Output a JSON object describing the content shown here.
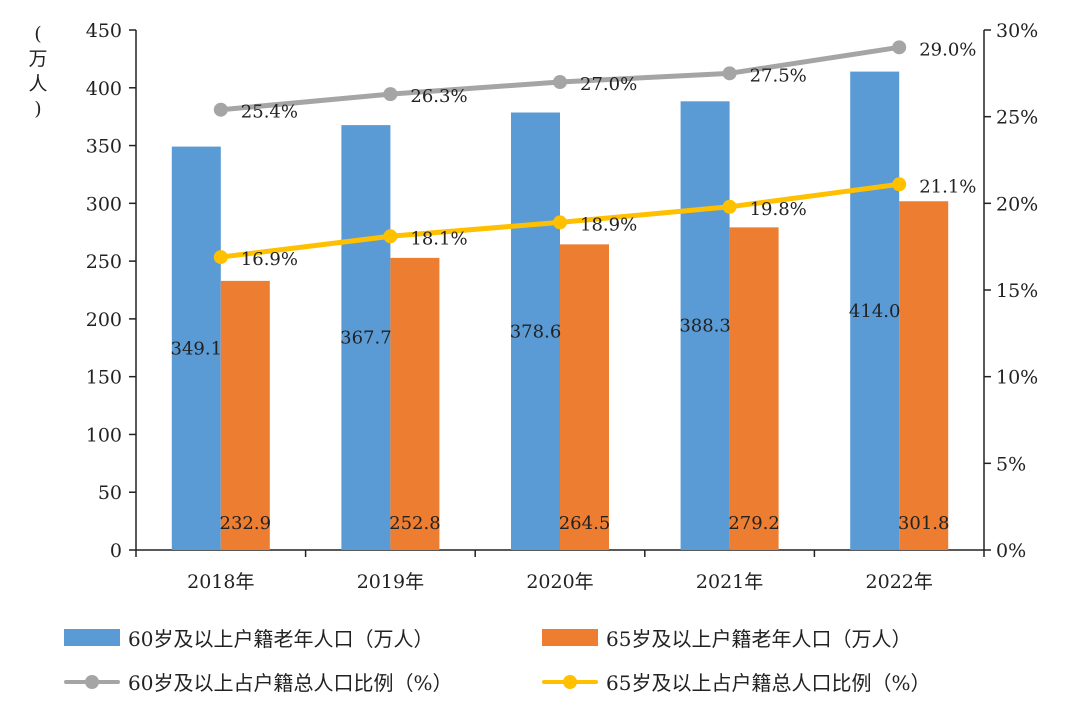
{
  "chart_data": {
    "type": "bar+line",
    "categories": [
      "2018年",
      "2019年",
      "2020年",
      "2021年",
      "2022年"
    ],
    "left_axis": {
      "label_chars": [
        "(",
        "万",
        "人",
        ")"
      ],
      "min": 0,
      "max": 450,
      "step": 50,
      "ticks": [
        "0",
        "50",
        "100",
        "150",
        "200",
        "250",
        "300",
        "350",
        "400",
        "450"
      ]
    },
    "right_axis": {
      "min": 0,
      "max": 30,
      "step": 5,
      "ticks": [
        "0%",
        "5%",
        "10%",
        "15%",
        "20%",
        "25%",
        "30%"
      ]
    },
    "series": [
      {
        "name": "60岁及以上户籍老年人口（万人）",
        "kind": "bar",
        "axis": "left",
        "color": "#5b9bd5",
        "values": [
          349.1,
          367.7,
          378.6,
          388.3,
          414.0
        ],
        "labels": [
          "349.1",
          "367.7",
          "378.6",
          "388.3",
          "414.0"
        ]
      },
      {
        "name": "65岁及以上户籍老年人口（万人）",
        "kind": "bar",
        "axis": "left",
        "color": "#ed7d31",
        "values": [
          232.9,
          252.8,
          264.5,
          279.2,
          301.8
        ],
        "labels": [
          "232.9",
          "252.8",
          "264.5",
          "279.2",
          "301.8"
        ]
      },
      {
        "name": "60岁及以上占户籍总人口比例（%）",
        "kind": "line",
        "axis": "right",
        "color": "#a5a5a5",
        "values": [
          25.4,
          26.3,
          27.0,
          27.5,
          29.0
        ],
        "labels": [
          "25.4%",
          "26.3%",
          "27.0%",
          "27.5%",
          "29.0%"
        ]
      },
      {
        "name": "65岁及以上占户籍总人口比例（%）",
        "kind": "line",
        "axis": "right",
        "color": "#ffc000",
        "values": [
          16.9,
          18.1,
          18.9,
          19.8,
          21.1
        ],
        "labels": [
          "16.9%",
          "18.1%",
          "18.9%",
          "19.8%",
          "21.1%"
        ]
      }
    ],
    "legend_position": "bottom",
    "grid": false
  }
}
